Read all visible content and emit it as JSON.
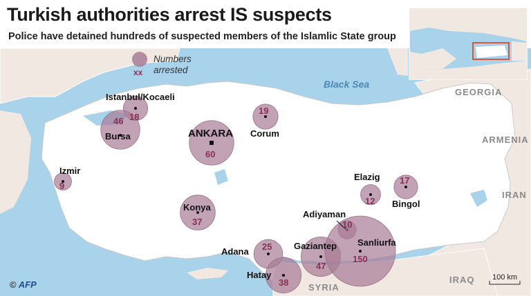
{
  "title": "Turkish authorities arrest IS suspects",
  "subtitle": "Police have detained hundreds of suspected members of the Islamlic State group",
  "legend": {
    "line1": "Numbers",
    "line2": "arrested",
    "marker": "xx"
  },
  "seas": {
    "black_sea": "Black Sea"
  },
  "countries": {
    "georgia": "GEORGIA",
    "armenia": "ARMENIA",
    "iran": "IRAN",
    "iraq": "IRAQ",
    "syria": "SYRIA"
  },
  "scale_label": "100 km",
  "credit": {
    "symbol": "©",
    "agency": "AFP"
  },
  "colors": {
    "bubble": "#a87b95",
    "number": "#8a2f55",
    "sea": "#a9d3ea",
    "land": "#f1e8e2",
    "turkey": "#ffffff",
    "inset_highlight": "#e2533a"
  },
  "locations": [
    {
      "id": "istanbul",
      "name": "Istanbul/Kocaeli",
      "count": 18
    },
    {
      "id": "bursa",
      "name": "Bursa",
      "count": 46
    },
    {
      "id": "ankara",
      "name": "ANKARA",
      "count": 60,
      "capital": true
    },
    {
      "id": "corum",
      "name": "Corum",
      "count": 19
    },
    {
      "id": "izmir",
      "name": "Izmir",
      "count": 9
    },
    {
      "id": "konya",
      "name": "Konya",
      "count": 37
    },
    {
      "id": "adana",
      "name": "Adana",
      "count": 25
    },
    {
      "id": "hatay",
      "name": "Hatay",
      "count": 38
    },
    {
      "id": "gaziantep",
      "name": "Gaziantep",
      "count": 47
    },
    {
      "id": "adiyaman",
      "name": "Adiyaman",
      "count": 10
    },
    {
      "id": "sanliurfa",
      "name": "Sanliurfa",
      "count": 150
    },
    {
      "id": "elazig",
      "name": "Elazig",
      "count": 12
    },
    {
      "id": "bingol",
      "name": "Bingol",
      "count": 17
    }
  ]
}
